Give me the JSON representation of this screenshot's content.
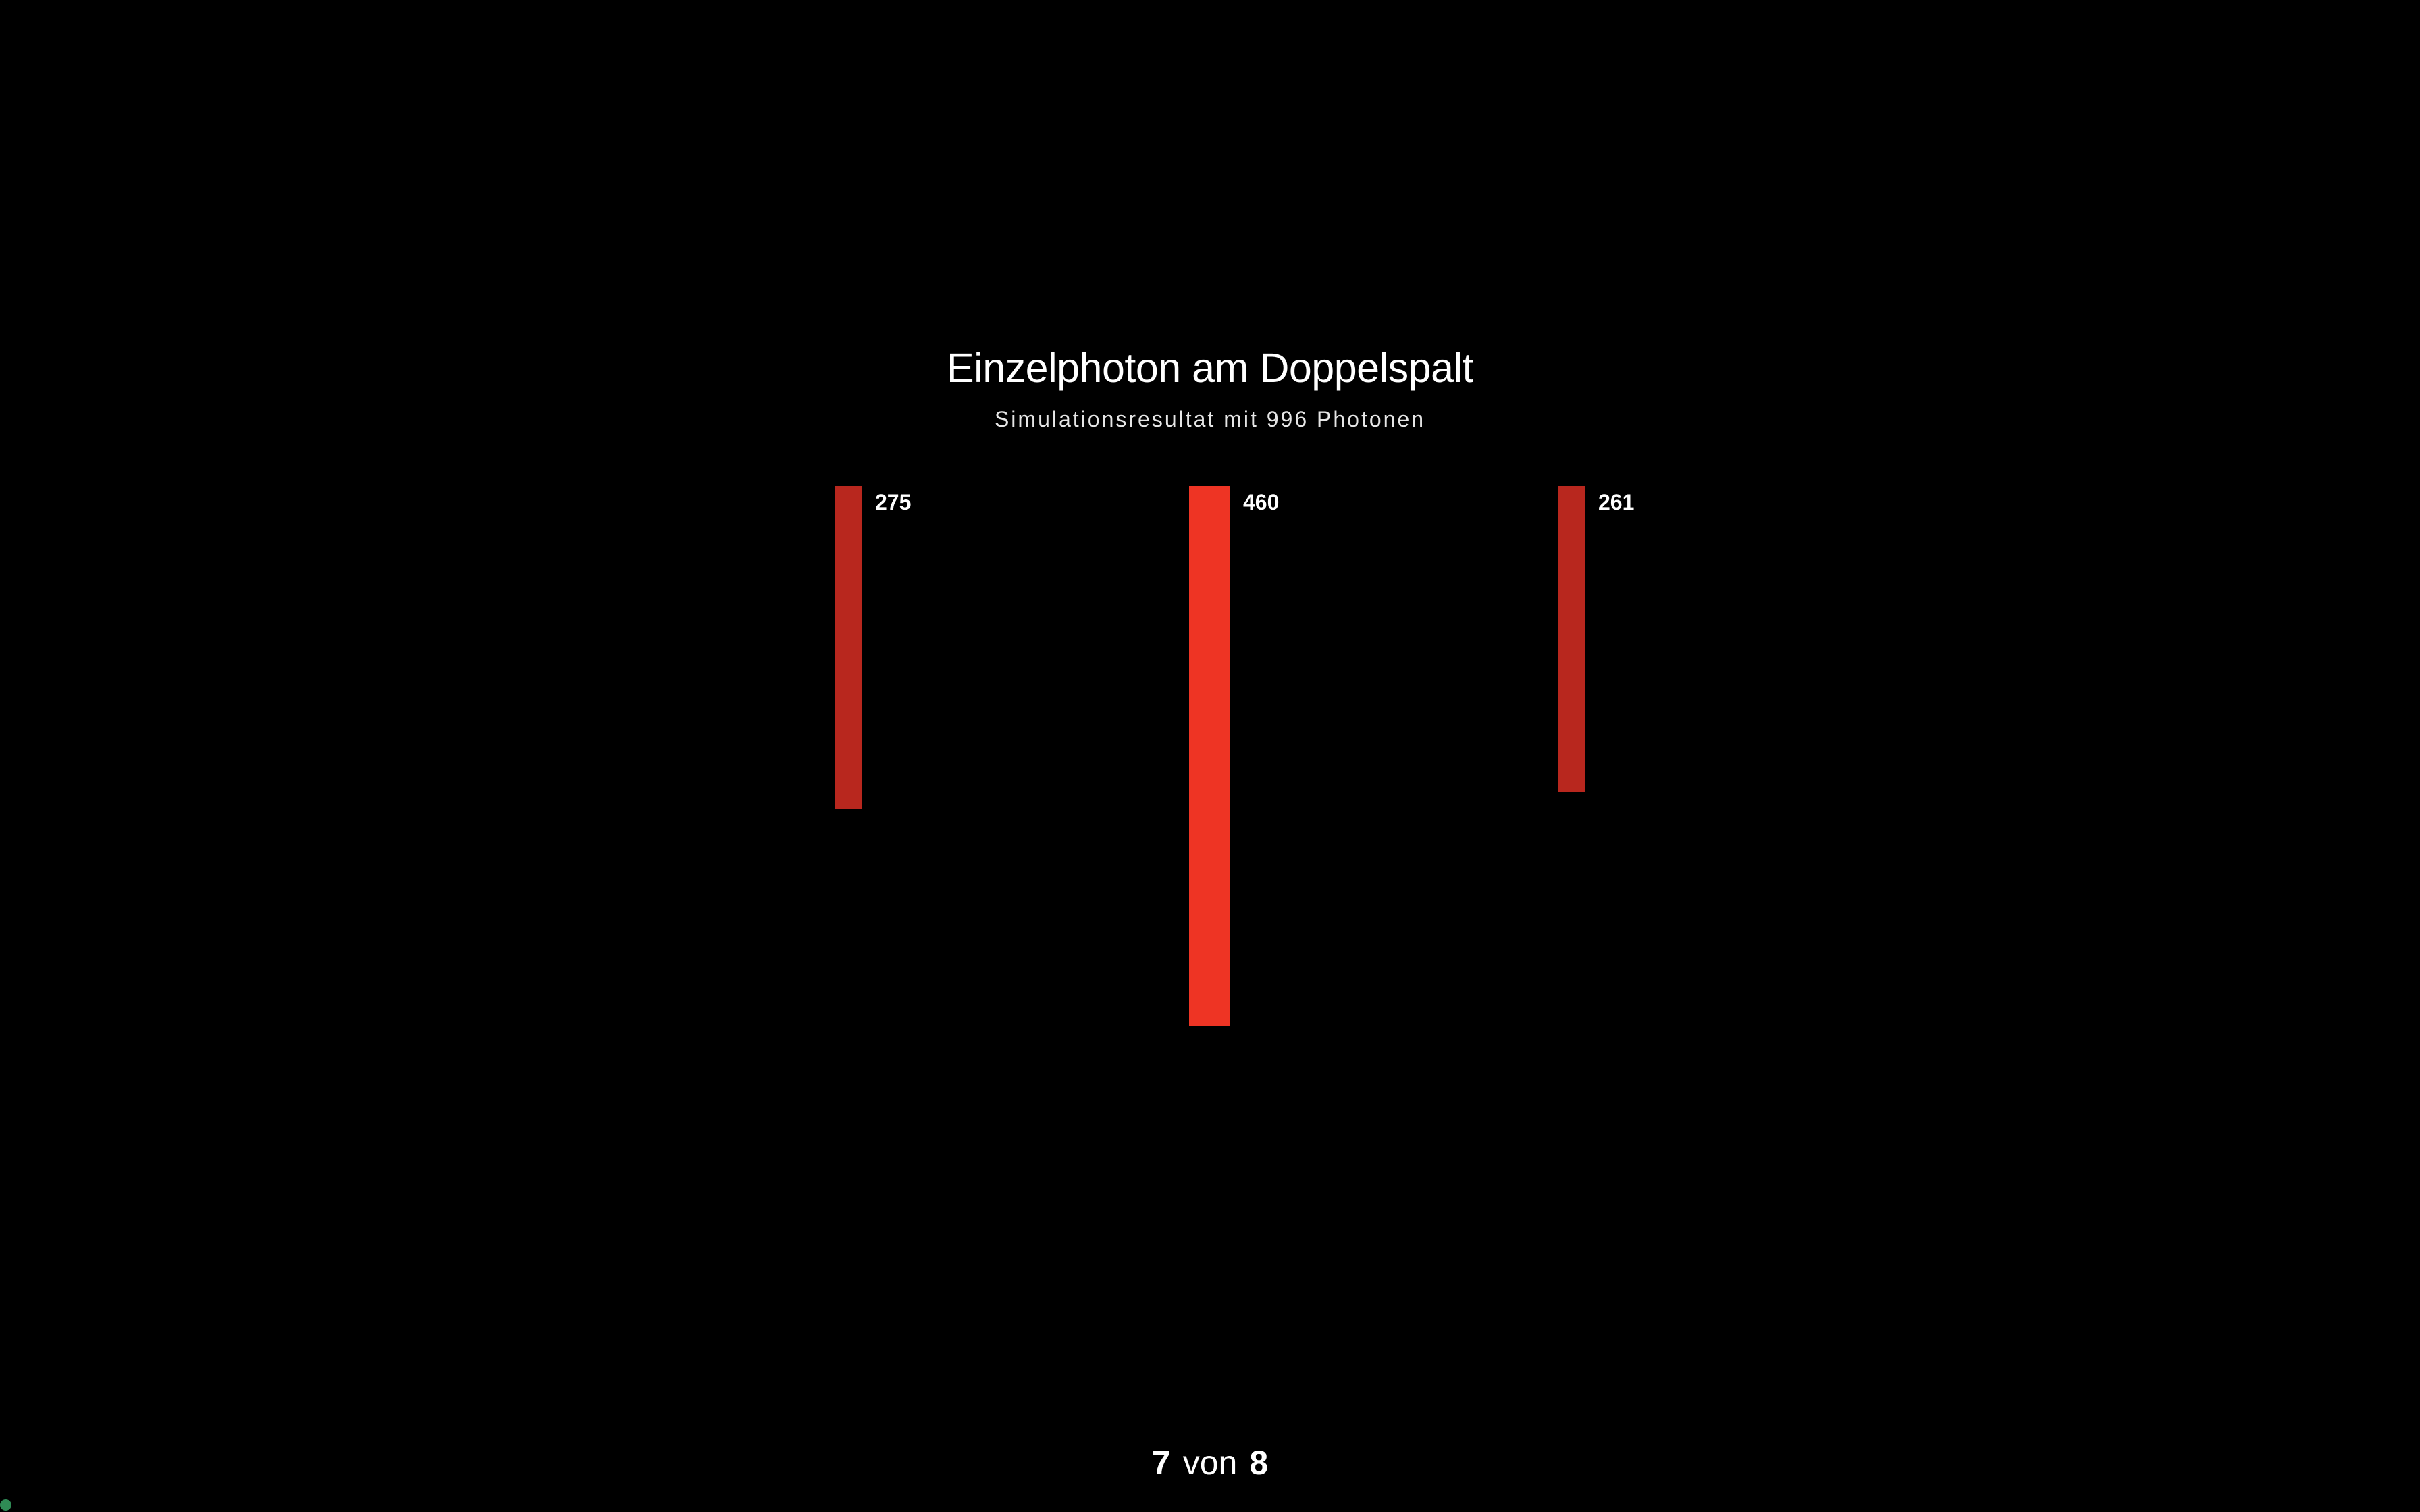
{
  "header": {
    "title": "Einzelphoton am Doppelspalt",
    "subtitle": "Simulationsresultat mit 996 Photonen"
  },
  "chart_data": {
    "type": "bar",
    "orientation": "vertical-downward",
    "title": "Einzelphoton am Doppelspalt",
    "subtitle": "Simulationsresultat mit 996 Photonen",
    "categories": [
      "",
      "",
      ""
    ],
    "values": [
      275,
      460,
      261
    ],
    "value_labels": [
      "275",
      "460",
      "261"
    ],
    "colors": [
      "#b8271e",
      "#ee3424",
      "#b8271e"
    ],
    "xlabel": "",
    "ylabel": "",
    "grid": false,
    "legend": "none"
  },
  "pager": {
    "current": "7",
    "word": "von",
    "total": "8"
  }
}
